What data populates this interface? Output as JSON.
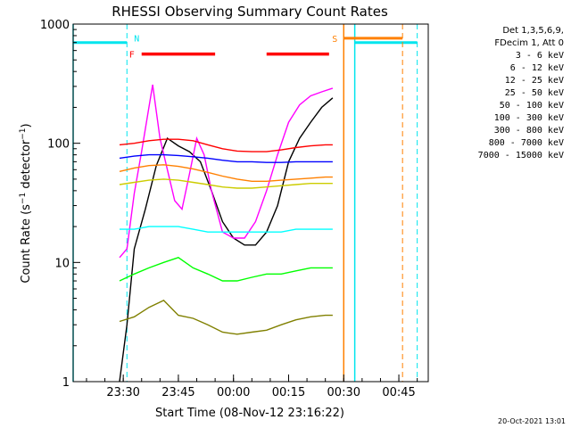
{
  "chart_data": {
    "type": "line",
    "title": "RHESSI Observing Summary Count Rates",
    "xlabel": "Start Time (08-Nov-12 23:16:22)",
    "ylabel": "Count Rate (s⁻¹ detector⁻¹)",
    "ylabel_main": "Count Rate (s",
    "ylabel_sup1": "−1",
    "ylabel_mid": " detector",
    "ylabel_sup2": "−1",
    "ylabel_end": ")",
    "y_scale": "log",
    "ylim": [
      1,
      1000
    ],
    "xlim": [
      "23:16:22",
      "00:53:00"
    ],
    "x_ticks": [
      "23:30",
      "23:45",
      "00:00",
      "00:15",
      "00:30",
      "00:45"
    ],
    "y_ticks": [
      "1",
      "10",
      "100",
      "1000"
    ],
    "grid": false,
    "legend_placement": "top-right",
    "legend_header": [
      "Det 1,3,5,6,9,",
      "FDecim 1, Att 0"
    ],
    "series": [
      {
        "name": "3 - 6 keV",
        "color": "#000000",
        "x": [
          "23:29",
          "23:31",
          "23:33",
          "23:36",
          "23:39",
          "23:42",
          "23:45",
          "23:48",
          "23:51",
          "23:54",
          "23:57",
          "00:00",
          "00:03",
          "00:06",
          "00:09",
          "00:12",
          "00:15",
          "00:18",
          "00:21",
          "00:24",
          "00:27"
        ],
        "y": [
          1.0,
          3,
          13,
          28,
          65,
          110,
          95,
          85,
          70,
          40,
          22,
          16,
          14,
          14,
          18,
          30,
          70,
          110,
          150,
          200,
          240
        ]
      },
      {
        "name": "6 - 12 keV",
        "color": "#ff00ff",
        "x": [
          "23:29",
          "23:31",
          "23:33",
          "23:35",
          "23:38",
          "23:40",
          "23:42",
          "23:44",
          "23:46",
          "23:48",
          "23:50",
          "23:52",
          "23:54",
          "23:57",
          "00:00",
          "00:03",
          "00:06",
          "00:09",
          "00:12",
          "00:15",
          "00:18",
          "00:21",
          "00:24",
          "00:27"
        ],
        "y": [
          11,
          13,
          38,
          85,
          310,
          110,
          60,
          33,
          28,
          55,
          110,
          80,
          40,
          18,
          16,
          16,
          22,
          40,
          80,
          150,
          210,
          250,
          270,
          290
        ]
      },
      {
        "name": "12 - 25 keV",
        "color": "#00ff00",
        "x": [
          "23:29",
          "23:33",
          "23:37",
          "23:41",
          "23:45",
          "23:49",
          "23:53",
          "23:57",
          "00:01",
          "00:05",
          "00:09",
          "00:13",
          "00:17",
          "00:21",
          "00:25",
          "00:27"
        ],
        "y": [
          7,
          8,
          9,
          10,
          11,
          9,
          8,
          7,
          7,
          7.5,
          8,
          8,
          8.5,
          9,
          9,
          9
        ]
      },
      {
        "name": "25 - 50 keV",
        "color": "#00ffff",
        "x": [
          "23:29",
          "23:33",
          "23:37",
          "23:41",
          "23:45",
          "23:49",
          "23:53",
          "23:57",
          "00:01",
          "00:05",
          "00:09",
          "00:13",
          "00:17",
          "00:21",
          "00:25",
          "00:27"
        ],
        "y": [
          19,
          19,
          20,
          20,
          20,
          19,
          18,
          18,
          18,
          18,
          18,
          18,
          19,
          19,
          19,
          19
        ]
      },
      {
        "name": "50 - 100 keV",
        "color": "#cccc00",
        "x": [
          "23:29",
          "23:33",
          "23:37",
          "23:41",
          "23:45",
          "23:49",
          "23:53",
          "23:57",
          "00:01",
          "00:05",
          "00:09",
          "00:13",
          "00:17",
          "00:21",
          "00:25",
          "00:27"
        ],
        "y": [
          45,
          47,
          49,
          50,
          49,
          47,
          45,
          43,
          42,
          42,
          43,
          44,
          45,
          46,
          46,
          46
        ]
      },
      {
        "name": "100 - 300 keV",
        "color": "#ff0000",
        "x": [
          "23:29",
          "23:33",
          "23:37",
          "23:41",
          "23:45",
          "23:49",
          "23:53",
          "23:57",
          "00:01",
          "00:05",
          "00:09",
          "00:13",
          "00:17",
          "00:21",
          "00:25",
          "00:27"
        ],
        "y": [
          97,
          100,
          105,
          108,
          108,
          105,
          97,
          90,
          86,
          85,
          85,
          88,
          92,
          95,
          97,
          97
        ]
      },
      {
        "name": "300 - 800 keV",
        "color": "#0000ff",
        "x": [
          "23:29",
          "23:33",
          "23:37",
          "23:41",
          "23:45",
          "23:49",
          "23:53",
          "23:57",
          "00:01",
          "00:05",
          "00:09",
          "00:13",
          "00:17",
          "00:21",
          "00:25",
          "00:27"
        ],
        "y": [
          75,
          78,
          80,
          80,
          79,
          77,
          75,
          72,
          70,
          70,
          69,
          69,
          70,
          70,
          70,
          70
        ]
      },
      {
        "name": "800 - 7000 keV",
        "color": "#ff8000",
        "x": [
          "23:29",
          "23:33",
          "23:37",
          "23:41",
          "23:45",
          "23:49",
          "23:53",
          "23:57",
          "00:01",
          "00:05",
          "00:09",
          "00:13",
          "00:17",
          "00:21",
          "00:25",
          "00:27"
        ],
        "y": [
          58,
          62,
          65,
          66,
          64,
          61,
          57,
          53,
          50,
          48,
          48,
          49,
          50,
          51,
          52,
          52
        ]
      },
      {
        "name": "7000 - 15000 keV",
        "color": "#808000",
        "x": [
          "23:29",
          "23:33",
          "23:37",
          "23:41",
          "23:45",
          "23:49",
          "23:53",
          "23:57",
          "00:01",
          "00:05",
          "00:09",
          "00:13",
          "00:17",
          "00:21",
          "00:25",
          "00:27"
        ],
        "y": [
          3.2,
          3.5,
          4.2,
          4.8,
          3.6,
          3.4,
          3.0,
          2.6,
          2.5,
          2.6,
          2.7,
          3.0,
          3.3,
          3.5,
          3.6,
          3.6
        ]
      }
    ],
    "annotations": {
      "night_label": "N",
      "flare_label": "F",
      "saa_label": "S",
      "night": [
        {
          "start": "23:16:22",
          "end": "23:31",
          "level": 700
        },
        {
          "start": "00:33",
          "end": "00:50",
          "level": 700
        }
      ],
      "flare": [
        {
          "start": "23:35",
          "end": "23:55",
          "level": 560
        },
        {
          "start": "00:09",
          "end": "00:26",
          "level": 560
        }
      ],
      "saa": [
        {
          "start": "00:30",
          "end": "00:46",
          "level": 760
        }
      ],
      "night_edges_solid": [
        "23:16:22",
        "00:33"
      ],
      "night_edges_dashed": [
        "23:31",
        "00:50"
      ],
      "saa_edges_solid": [
        "00:30"
      ],
      "saa_edges_dashed": [
        "00:46"
      ]
    }
  },
  "footer": {
    "timestamp": "20-Oct-2021 13:01"
  },
  "colors": {
    "night": "#00e5ee",
    "flare": "#ff0000",
    "saa": "#ff8000"
  }
}
